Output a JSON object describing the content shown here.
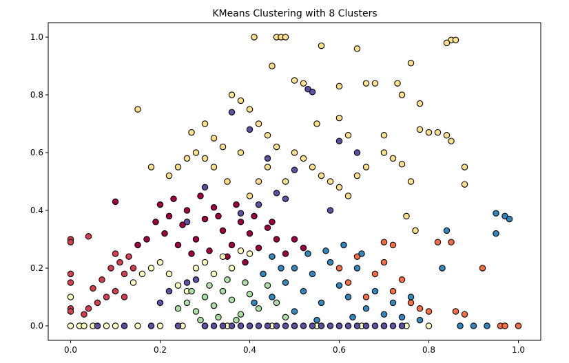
{
  "chart_data": {
    "type": "scatter",
    "title": "KMeans Clustering with 8 Clusters",
    "xlabel": "",
    "ylabel": "",
    "xlim": [
      -0.05,
      1.05
    ],
    "ylim": [
      -0.05,
      1.05
    ],
    "x_ticks": [
      0.0,
      0.2,
      0.4,
      0.6,
      0.8,
      1.0
    ],
    "y_ticks": [
      0.0,
      0.2,
      0.4,
      0.6,
      0.8,
      1.0
    ],
    "x_tick_labels": [
      "0.0",
      "0.2",
      "0.4",
      "0.6",
      "0.8",
      "1.0"
    ],
    "y_tick_labels": [
      "0.0",
      "0.2",
      "0.4",
      "0.6",
      "0.8",
      "1.0"
    ],
    "grid": false,
    "legend": "none",
    "marker_edge_color": "#000000",
    "cluster_colors": [
      "#9e0142",
      "#d53e4f",
      "#f46d43",
      "#fdae61",
      "#fee08b",
      "#e6f598",
      "#abdda4",
      "#66c2a5",
      "#3288bd",
      "#5e4fa2"
    ],
    "series": [
      {
        "cluster": 0,
        "color": "#9e0142",
        "points": [
          [
            0.2,
            0.42
          ],
          [
            0.22,
            0.38
          ],
          [
            0.25,
            0.35
          ],
          [
            0.28,
            0.3
          ],
          [
            0.3,
            0.37
          ],
          [
            0.32,
            0.41
          ],
          [
            0.34,
            0.33
          ],
          [
            0.36,
            0.28
          ],
          [
            0.38,
            0.36
          ],
          [
            0.4,
            0.32
          ],
          [
            0.42,
            0.27
          ],
          [
            0.44,
            0.34
          ],
          [
            0.46,
            0.3
          ],
          [
            0.48,
            0.25
          ],
          [
            0.24,
            0.28
          ],
          [
            0.27,
            0.25
          ],
          [
            0.31,
            0.26
          ],
          [
            0.35,
            0.24
          ],
          [
            0.39,
            0.22
          ],
          [
            0.21,
            0.32
          ],
          [
            0.19,
            0.36
          ],
          [
            0.23,
            0.44
          ],
          [
            0.26,
            0.4
          ],
          [
            0.29,
            0.45
          ],
          [
            0.33,
            0.38
          ],
          [
            0.37,
            0.42
          ],
          [
            0.41,
            0.38
          ],
          [
            0.45,
            0.36
          ],
          [
            0.5,
            0.3
          ],
          [
            0.52,
            0.27
          ],
          [
            0.1,
            0.43
          ],
          [
            0.17,
            0.3
          ],
          [
            0.15,
            0.28
          ]
        ]
      },
      {
        "cluster": 1,
        "color": "#d53e4f",
        "points": [
          [
            0.0,
            0.3
          ],
          [
            0.0,
            0.29
          ],
          [
            0.0,
            0.18
          ],
          [
            0.0,
            0.15
          ],
          [
            0.0,
            0.06
          ],
          [
            0.0,
            0.05
          ],
          [
            0.05,
            0.13
          ],
          [
            0.07,
            0.16
          ],
          [
            0.09,
            0.2
          ],
          [
            0.1,
            0.25
          ],
          [
            0.11,
            0.22
          ],
          [
            0.12,
            0.18
          ],
          [
            0.13,
            0.24
          ],
          [
            0.14,
            0.2
          ],
          [
            0.08,
            0.1
          ],
          [
            0.06,
            0.08
          ],
          [
            0.04,
            0.06
          ],
          [
            0.1,
            0.12
          ],
          [
            0.12,
            0.1
          ],
          [
            0.03,
            0.04
          ],
          [
            0.04,
            0.31
          ]
        ]
      },
      {
        "cluster": 2,
        "color": "#f46d43",
        "points": [
          [
            0.6,
            0.2
          ],
          [
            0.62,
            0.15
          ],
          [
            0.64,
            0.24
          ],
          [
            0.66,
            0.1
          ],
          [
            0.68,
            0.18
          ],
          [
            0.7,
            0.22
          ],
          [
            0.72,
            0.12
          ],
          [
            0.74,
            0.16
          ],
          [
            0.76,
            0.08
          ],
          [
            0.78,
            0.06
          ],
          [
            0.8,
            0.05
          ],
          [
            0.82,
            0.29
          ],
          [
            0.85,
            0.29
          ],
          [
            0.86,
            0.05
          ],
          [
            0.88,
            0.04
          ],
          [
            0.92,
            0.2
          ],
          [
            0.96,
            0.0
          ],
          [
            0.97,
            0.0
          ],
          [
            1.0,
            0.0
          ],
          [
            0.7,
            0.29
          ],
          [
            0.72,
            0.28
          ]
        ]
      },
      {
        "cluster": 3,
        "color": "#fee08b",
        "points": [
          [
            0.41,
            1.0
          ],
          [
            0.46,
            1.0
          ],
          [
            0.47,
            1.0
          ],
          [
            0.48,
            1.0
          ],
          [
            0.56,
            0.97
          ],
          [
            0.64,
            0.96
          ],
          [
            0.76,
            0.91
          ],
          [
            0.85,
            0.99
          ],
          [
            0.86,
            0.99
          ],
          [
            0.84,
            0.98
          ],
          [
            0.45,
            0.9
          ],
          [
            0.5,
            0.85
          ],
          [
            0.52,
            0.84
          ],
          [
            0.6,
            0.83
          ],
          [
            0.66,
            0.84
          ],
          [
            0.68,
            0.84
          ],
          [
            0.73,
            0.84
          ],
          [
            0.74,
            0.8
          ],
          [
            0.78,
            0.77
          ],
          [
            0.36,
            0.8
          ],
          [
            0.38,
            0.78
          ],
          [
            0.4,
            0.75
          ],
          [
            0.42,
            0.7
          ],
          [
            0.3,
            0.7
          ],
          [
            0.32,
            0.65
          ],
          [
            0.34,
            0.62
          ],
          [
            0.28,
            0.6
          ],
          [
            0.26,
            0.58
          ],
          [
            0.24,
            0.55
          ],
          [
            0.22,
            0.52
          ],
          [
            0.18,
            0.55
          ],
          [
            0.15,
            0.75
          ],
          [
            0.27,
            0.67
          ],
          [
            0.44,
            0.66
          ],
          [
            0.46,
            0.62
          ],
          [
            0.5,
            0.6
          ],
          [
            0.52,
            0.58
          ],
          [
            0.54,
            0.55
          ],
          [
            0.56,
            0.52
          ],
          [
            0.58,
            0.5
          ],
          [
            0.6,
            0.48
          ],
          [
            0.62,
            0.45
          ],
          [
            0.64,
            0.52
          ],
          [
            0.66,
            0.55
          ],
          [
            0.7,
            0.6
          ],
          [
            0.72,
            0.58
          ],
          [
            0.74,
            0.56
          ],
          [
            0.76,
            0.5
          ],
          [
            0.78,
            0.68
          ],
          [
            0.8,
            0.67
          ],
          [
            0.82,
            0.67
          ],
          [
            0.84,
            0.66
          ],
          [
            0.85,
            0.64
          ],
          [
            0.88,
            0.55
          ],
          [
            0.88,
            0.49
          ],
          [
            0.55,
            0.7
          ],
          [
            0.6,
            0.72
          ],
          [
            0.62,
            0.66
          ],
          [
            0.7,
            0.66
          ],
          [
            0.75,
            0.38
          ],
          [
            0.77,
            0.33
          ],
          [
            0.4,
            0.45
          ],
          [
            0.42,
            0.5
          ],
          [
            0.44,
            0.55
          ],
          [
            0.48,
            0.5
          ],
          [
            0.35,
            0.5
          ],
          [
            0.32,
            0.55
          ],
          [
            0.38,
            0.6
          ],
          [
            0.3,
            0.58
          ]
        ]
      },
      {
        "cluster": 4,
        "color": "#ffffbf",
        "points": [
          [
            0.0,
            0.1
          ],
          [
            0.0,
            0.0
          ],
          [
            0.02,
            0.0
          ],
          [
            0.03,
            0.0
          ],
          [
            0.05,
            0.0
          ],
          [
            0.08,
            0.0
          ],
          [
            0.1,
            0.0
          ],
          [
            0.15,
            0.0
          ],
          [
            0.2,
            0.0
          ],
          [
            0.25,
            0.0
          ],
          [
            0.3,
            0.0
          ],
          [
            0.35,
            0.0
          ],
          [
            0.4,
            0.0
          ],
          [
            0.45,
            0.0
          ],
          [
            0.5,
            0.0
          ],
          [
            0.55,
            0.0
          ],
          [
            0.6,
            0.0
          ],
          [
            0.65,
            0.0
          ],
          [
            0.7,
            0.0
          ],
          [
            0.75,
            0.0
          ],
          [
            0.8,
            0.0
          ],
          [
            0.14,
            0.15
          ],
          [
            0.16,
            0.18
          ],
          [
            0.18,
            0.2
          ],
          [
            0.2,
            0.22
          ],
          [
            0.22,
            0.18
          ],
          [
            0.24,
            0.14
          ],
          [
            0.26,
            0.12
          ],
          [
            0.28,
            0.2
          ],
          [
            0.3,
            0.22
          ],
          [
            0.32,
            0.18
          ],
          [
            0.34,
            0.24
          ],
          [
            0.36,
            0.2
          ],
          [
            0.38,
            0.26
          ],
          [
            0.4,
            0.25
          ]
        ]
      },
      {
        "cluster": 5,
        "color": "#abdda4",
        "points": [
          [
            0.24,
            0.06
          ],
          [
            0.26,
            0.08
          ],
          [
            0.28,
            0.05
          ],
          [
            0.3,
            0.1
          ],
          [
            0.32,
            0.07
          ],
          [
            0.34,
            0.12
          ],
          [
            0.36,
            0.09
          ],
          [
            0.38,
            0.04
          ],
          [
            0.4,
            0.11
          ],
          [
            0.42,
            0.06
          ],
          [
            0.44,
            0.14
          ],
          [
            0.46,
            0.08
          ],
          [
            0.48,
            0.03
          ],
          [
            0.27,
            0.12
          ],
          [
            0.31,
            0.14
          ],
          [
            0.35,
            0.16
          ],
          [
            0.39,
            0.15
          ],
          [
            0.33,
            0.03
          ],
          [
            0.29,
            0.02
          ],
          [
            0.37,
            0.02
          ]
        ]
      },
      {
        "cluster": 6,
        "color": "#3288bd",
        "points": [
          [
            0.45,
            0.1
          ],
          [
            0.48,
            0.15
          ],
          [
            0.5,
            0.2
          ],
          [
            0.52,
            0.12
          ],
          [
            0.54,
            0.18
          ],
          [
            0.56,
            0.08
          ],
          [
            0.58,
            0.22
          ],
          [
            0.6,
            0.14
          ],
          [
            0.62,
            0.1
          ],
          [
            0.64,
            0.2
          ],
          [
            0.66,
            0.06
          ],
          [
            0.68,
            0.12
          ],
          [
            0.7,
            0.04
          ],
          [
            0.72,
            0.08
          ],
          [
            0.74,
            0.03
          ],
          [
            0.76,
            0.1
          ],
          [
            0.78,
            0.02
          ],
          [
            0.5,
            0.05
          ],
          [
            0.53,
            0.25
          ],
          [
            0.57,
            0.26
          ],
          [
            0.61,
            0.28
          ],
          [
            0.65,
            0.25
          ],
          [
            0.63,
            0.03
          ],
          [
            0.55,
            0.02
          ],
          [
            0.47,
            0.2
          ],
          [
            0.43,
            0.18
          ],
          [
            0.45,
            0.24
          ],
          [
            0.41,
            0.08
          ],
          [
            0.87,
            0.0
          ],
          [
            0.9,
            0.0
          ],
          [
            0.93,
            0.0
          ],
          [
            0.95,
            0.39
          ],
          [
            0.95,
            0.32
          ],
          [
            0.97,
            0.38
          ],
          [
            0.98,
            0.37
          ],
          [
            0.84,
            0.33
          ],
          [
            0.83,
            0.2
          ]
        ]
      },
      {
        "cluster": 7,
        "color": "#5e4fa2",
        "points": [
          [
            0.3,
            0.0
          ],
          [
            0.32,
            0.0
          ],
          [
            0.34,
            0.0
          ],
          [
            0.36,
            0.0
          ],
          [
            0.38,
            0.0
          ],
          [
            0.4,
            0.0
          ],
          [
            0.42,
            0.0
          ],
          [
            0.44,
            0.0
          ],
          [
            0.46,
            0.0
          ],
          [
            0.48,
            0.0
          ],
          [
            0.5,
            0.0
          ],
          [
            0.52,
            0.0
          ],
          [
            0.54,
            0.0
          ],
          [
            0.56,
            0.0
          ],
          [
            0.58,
            0.0
          ],
          [
            0.6,
            0.0
          ],
          [
            0.62,
            0.0
          ],
          [
            0.64,
            0.0
          ],
          [
            0.66,
            0.0
          ],
          [
            0.68,
            0.0
          ],
          [
            0.7,
            0.0
          ],
          [
            0.72,
            0.0
          ],
          [
            0.74,
            0.0
          ],
          [
            0.06,
            0.0
          ],
          [
            0.12,
            0.0
          ],
          [
            0.18,
            0.0
          ],
          [
            0.24,
            0.0
          ],
          [
            0.53,
            0.82
          ],
          [
            0.54,
            0.81
          ],
          [
            0.36,
            0.74
          ],
          [
            0.4,
            0.68
          ],
          [
            0.44,
            0.58
          ],
          [
            0.46,
            0.46
          ],
          [
            0.5,
            0.54
          ],
          [
            0.48,
            0.44
          ],
          [
            0.42,
            0.42
          ],
          [
            0.38,
            0.39
          ],
          [
            0.3,
            0.48
          ],
          [
            0.26,
            0.36
          ],
          [
            0.22,
            0.12
          ],
          [
            0.26,
            0.15
          ],
          [
            0.2,
            0.08
          ],
          [
            0.28,
            0.16
          ],
          [
            0.6,
            0.64
          ],
          [
            0.64,
            0.6
          ],
          [
            0.58,
            0.4
          ]
        ]
      }
    ]
  }
}
